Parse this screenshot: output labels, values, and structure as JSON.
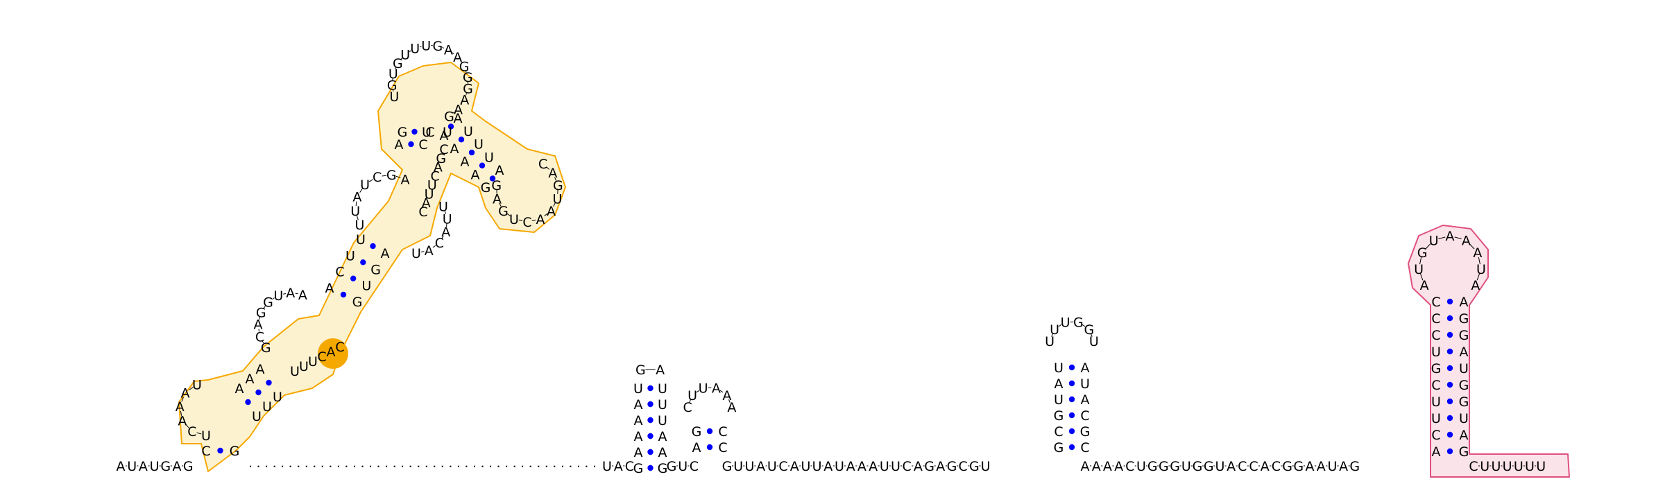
{
  "diagram": {
    "colors": {
      "background": "#ffffff",
      "nucleotide_text": "#000000",
      "base_pair_dot": "#0000ff",
      "highlight_outline_1": "#f5a800",
      "highlight_fill_1": "#fdf2d0",
      "highlight_accent_1": "#f5a800",
      "highlight_outline_2": "#e05080",
      "highlight_fill_2": "#fbe3ea"
    },
    "five_prime_leader": "AUAUGAG",
    "gap_spacer": "............................................",
    "between_hairpins_1": "UAC",
    "between_hairpins_2": "GUC",
    "central_linker": "GUUAUCAUUAUAAAUUCAGAGCGU",
    "long_linker": "AAAACUGGGUGGUACCACGGAAUAG",
    "three_prime_tail": "CUUUUUU",
    "hairpin_a": {
      "stem_5p": "UAAAAG",
      "loop": "GA",
      "stem_3p": "UUUAAG"
    },
    "hairpin_b": {
      "stem_5p": "GA",
      "loop": "CUUAAA",
      "stem_3p": "CC"
    },
    "hairpin_c": {
      "stem_5p": "GCGUAU",
      "loop": "UUUGGU",
      "stem_3p": "AUACGC"
    },
    "terminal_hairpin": {
      "stem_5p": "ACUUCGUCCC",
      "loop": "AUGUAAAUA",
      "stem_3p": "AGGAUGGUAG"
    },
    "domain_1": {
      "closing_pair": "CG",
      "inner_loop": "UCAAAU",
      "stem_a": "AAA",
      "stem_a_partner": "UUU",
      "interior_loop_5p": "GCAGGUAA",
      "interior_loop_3p": "UUUCAC",
      "stem_b": "ACUU",
      "stem_b_partner": "GUGA",
      "interior_loop_5p_b": "UUAUCGA",
      "interior_loop_3p_b": "UUACAU",
      "stem_c": "AG",
      "stem_c_partner": "CU",
      "apical_5p": "UGUGUUUGAAGGGAAG",
      "branch_stem": "AUUUA",
      "branch_stem_partner": "AAAAG",
      "branch_loop": "CAGUAACUGAG",
      "branch_5p_link": "CU",
      "branch_3p_link": "CGACUUAC"
    }
  }
}
